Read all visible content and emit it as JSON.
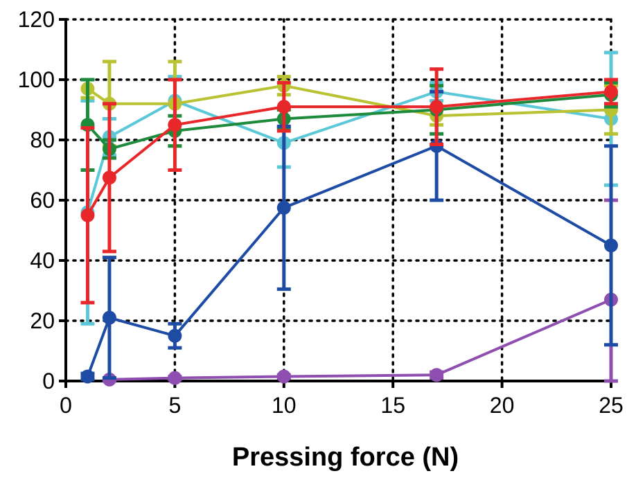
{
  "chart_data": {
    "type": "line",
    "title": "",
    "xlabel": "Pressing force (N)",
    "ylabel": "",
    "xlim": [
      0,
      25
    ],
    "ylim": [
      0,
      120
    ],
    "xticks": [
      0,
      5,
      10,
      15,
      20,
      25
    ],
    "yticks": [
      0,
      20,
      40,
      60,
      80,
      100,
      120
    ],
    "xtick_labels": [
      "0",
      "5",
      "10",
      "15",
      "20",
      "25"
    ],
    "ytick_labels": [
      "0",
      "20",
      "40",
      "60",
      "80",
      "100",
      "120"
    ],
    "grid": true,
    "series": [
      {
        "name": "cyan",
        "color": "#5bc8d8",
        "marker": "circle",
        "x": [
          1,
          2,
          5,
          10,
          17,
          25
        ],
        "y": [
          56,
          81,
          93,
          79,
          96,
          87
        ],
        "err": [
          37,
          6,
          8,
          8,
          3,
          22
        ]
      },
      {
        "name": "olive",
        "color": "#b8c232",
        "marker": "circle",
        "x": [
          1,
          2,
          5,
          10,
          17,
          25
        ],
        "y": [
          97,
          92,
          92,
          98,
          88,
          90
        ],
        "err": [
          3,
          14,
          14,
          3,
          3,
          8
        ]
      },
      {
        "name": "green",
        "color": "#1e8a3c",
        "marker": "circle",
        "x": [
          1,
          2,
          5,
          10,
          17,
          25
        ],
        "y": [
          85,
          77,
          83,
          87,
          90,
          95
        ],
        "err": [
          15,
          3,
          5,
          3,
          8,
          4
        ]
      },
      {
        "name": "purple",
        "color": "#8e4fb0",
        "marker": "circle",
        "x": [
          2,
          5,
          10,
          17,
          25
        ],
        "y": [
          0.5,
          1,
          1.5,
          2,
          27
        ],
        "err": [
          0.5,
          0.5,
          0.5,
          1,
          33
        ]
      },
      {
        "name": "blue",
        "color": "#1e4ba3",
        "marker": "circle",
        "x": [
          1,
          2,
          5,
          10,
          17,
          25
        ],
        "y": [
          1.5,
          21,
          15,
          57.5,
          78,
          45
        ],
        "err": [
          1,
          20,
          4,
          27,
          18,
          33
        ]
      },
      {
        "name": "red",
        "color": "#e8272a",
        "marker": "circle",
        "x": [
          1,
          2,
          5,
          10,
          17,
          25
        ],
        "y": [
          55,
          67.5,
          85,
          91,
          91,
          96
        ],
        "err": [
          29,
          24.5,
          15,
          8,
          12.5,
          4
        ]
      }
    ]
  }
}
